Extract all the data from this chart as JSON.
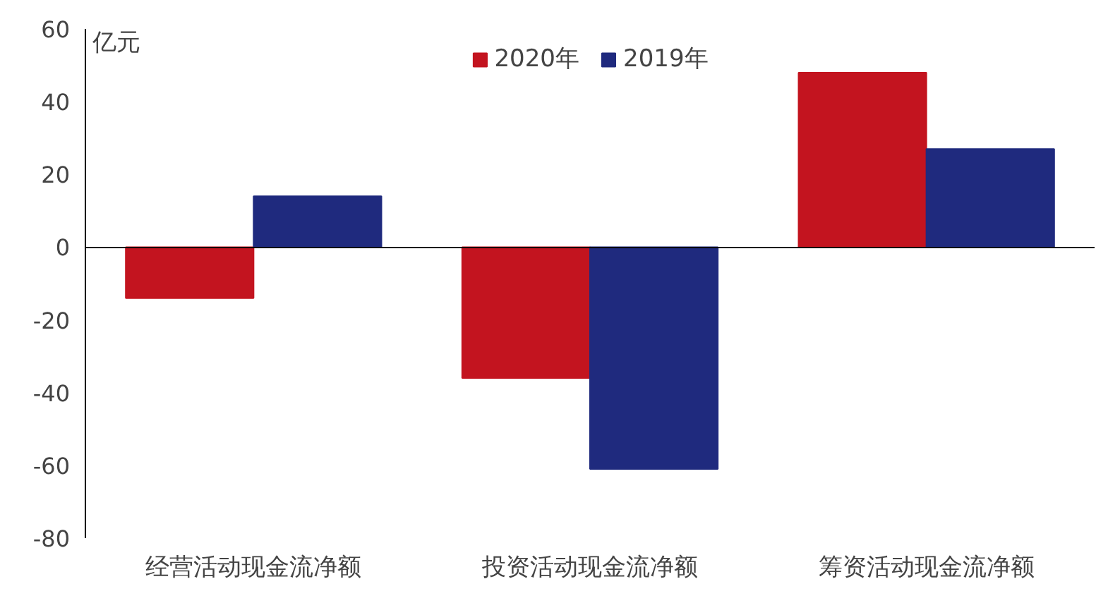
{
  "chart_data": {
    "type": "bar",
    "ylabel": "亿元",
    "categories": [
      "经营活动现金流净额",
      "投资活动现金流净额",
      "筹资活动现金流净额"
    ],
    "series": [
      {
        "name": "2020年",
        "color": "#c3141f",
        "values": [
          -14,
          -36,
          48
        ]
      },
      {
        "name": "2019年",
        "color": "#1f2a7e",
        "values": [
          14,
          -61,
          27
        ]
      }
    ],
    "ylim": [
      -80,
      60
    ],
    "yticks": [
      -80,
      -60,
      -40,
      -20,
      0,
      20,
      40,
      60
    ],
    "legend": "top"
  }
}
